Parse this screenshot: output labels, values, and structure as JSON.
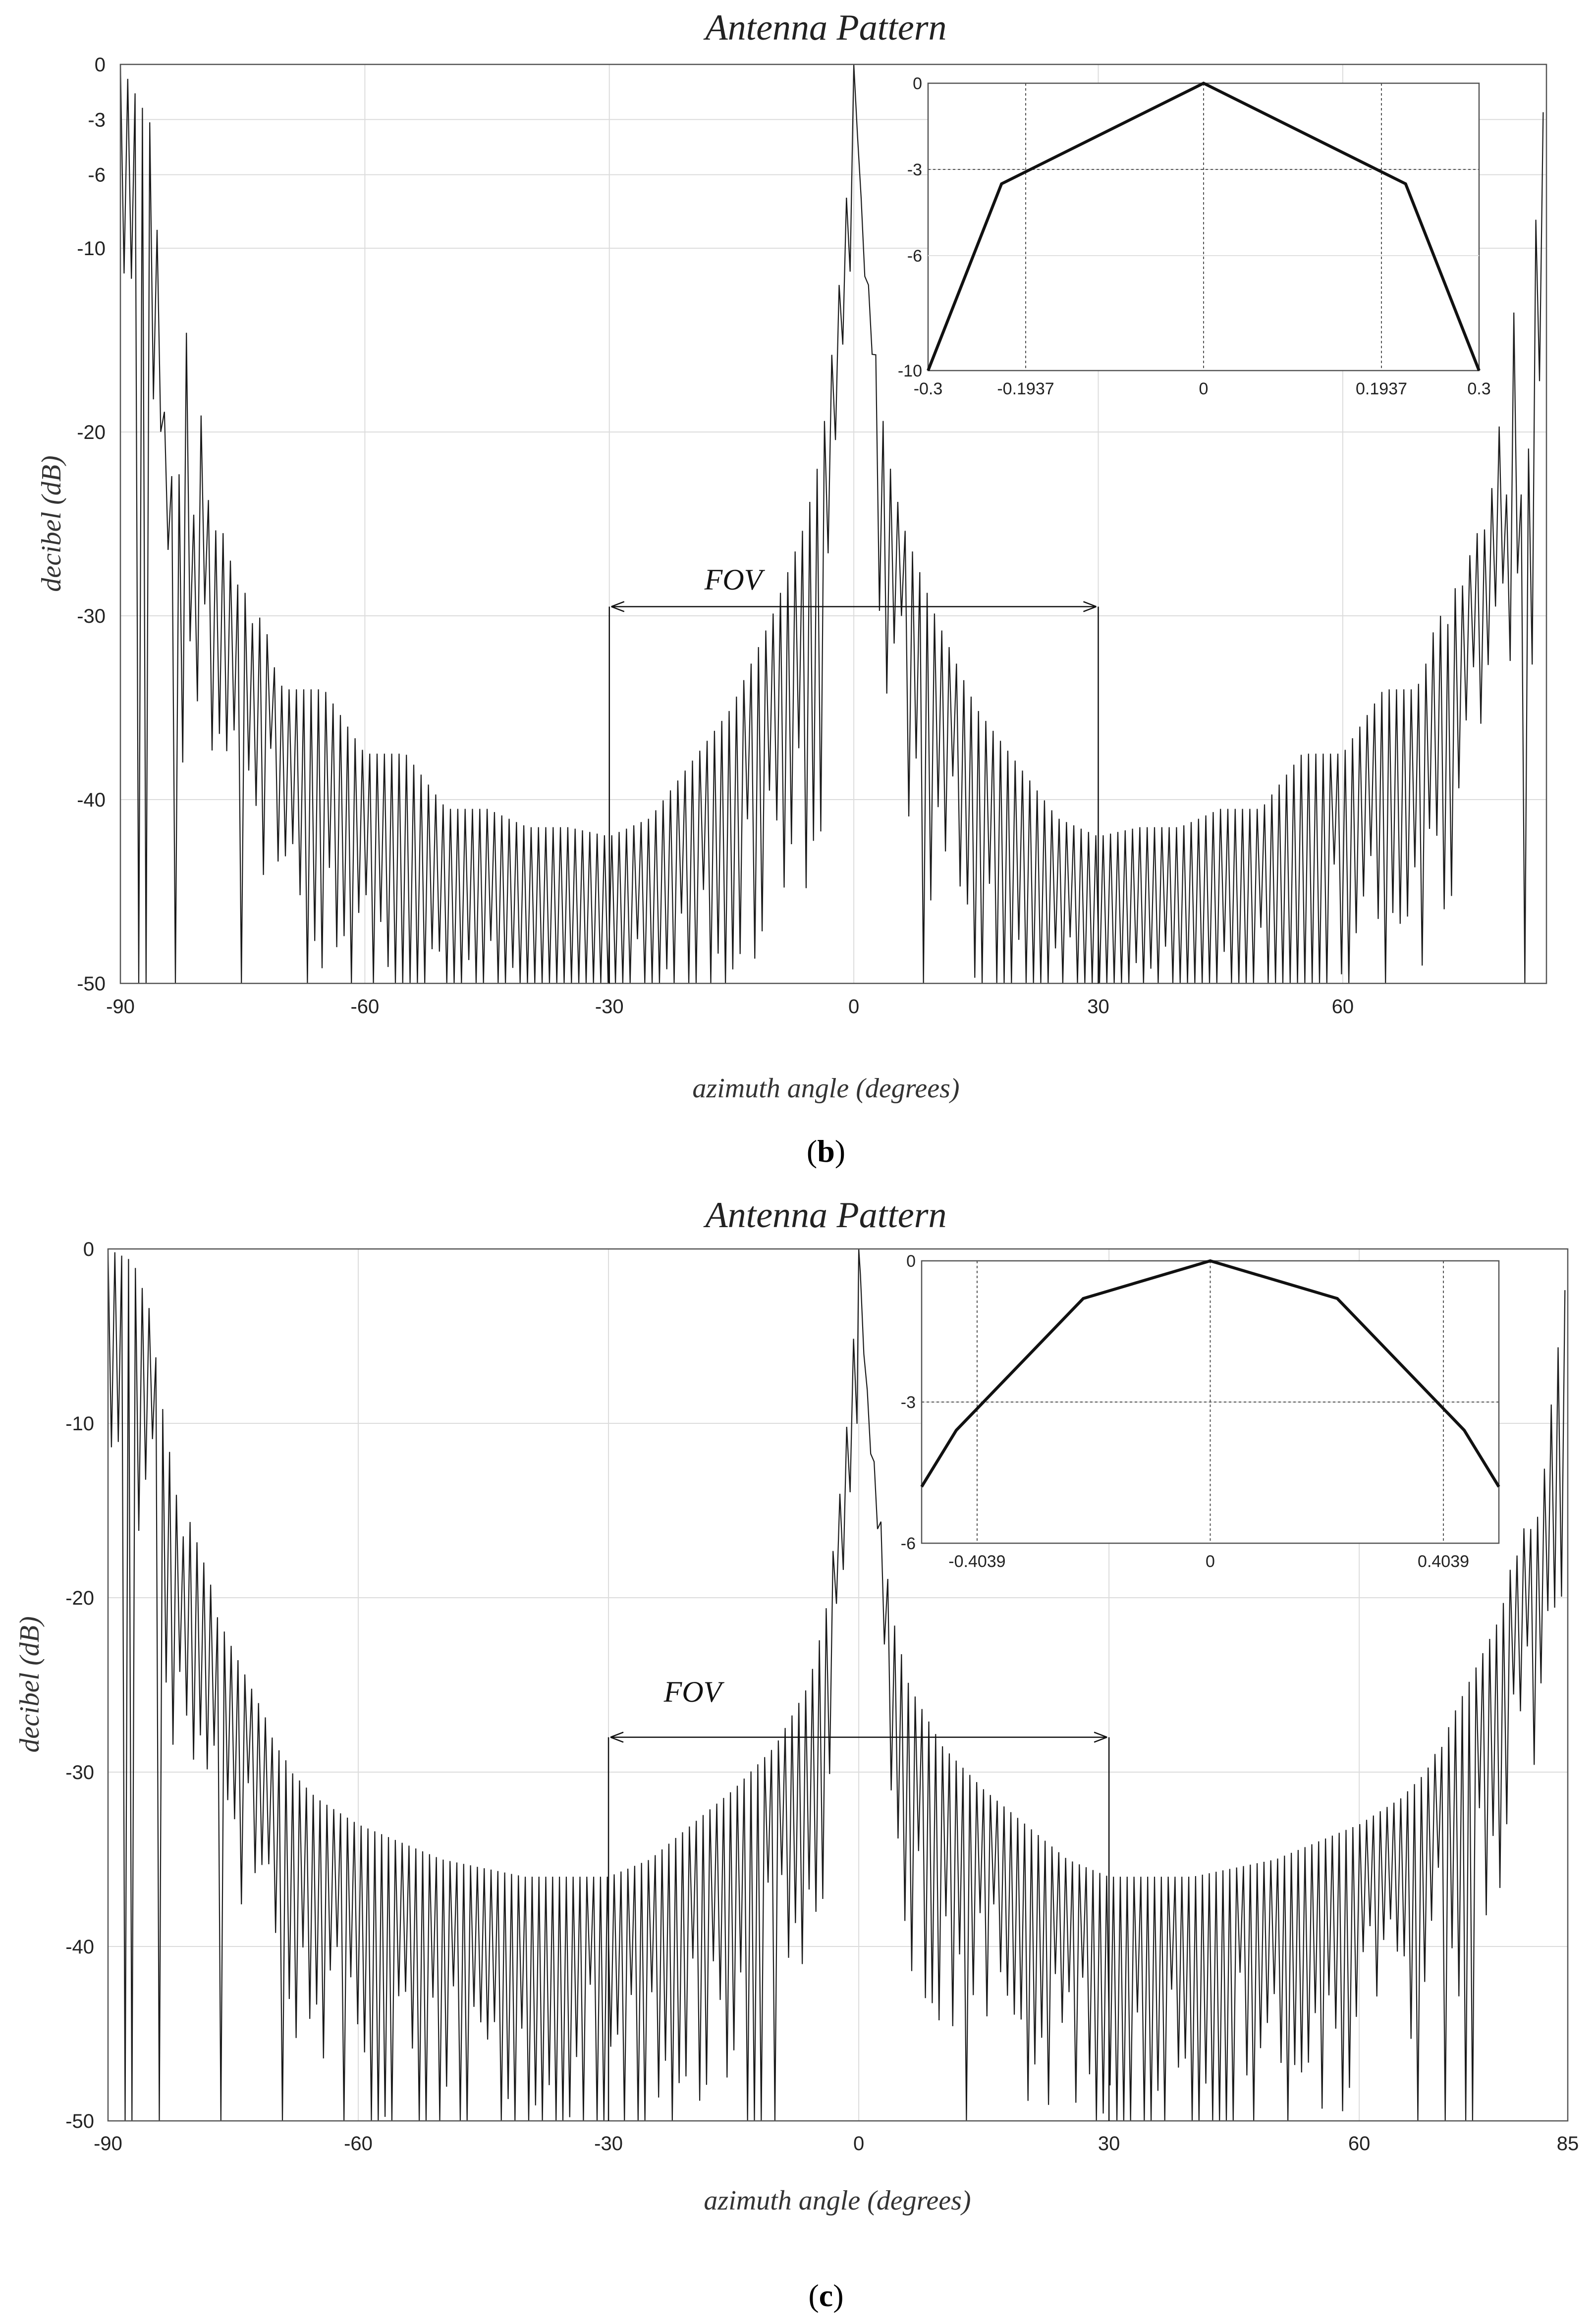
{
  "chart_data": [
    {
      "type": "line",
      "panel": "b",
      "title": "Antenna Pattern",
      "xlabel": "azimuth angle (degrees)",
      "ylabel": "decibel (dB)",
      "xlim": [
        -90,
        85
      ],
      "ylim": [
        -50,
        0
      ],
      "xticks": [
        -90,
        -60,
        -30,
        0,
        30,
        60
      ],
      "yticks": [
        0,
        -3,
        -6,
        -10,
        -20,
        -30,
        -40,
        -50
      ],
      "grid": true,
      "series": [
        {
          "name": "pattern",
          "floor": -50,
          "x": [
            -90,
            -86,
            -84.5,
            -83,
            -82,
            -81,
            -80,
            -79,
            -78,
            -77,
            -76,
            -75,
            -74,
            -73,
            -72,
            -71,
            -70,
            -69,
            -68,
            -65,
            -60,
            -55,
            -50,
            -45,
            -40,
            -35,
            -30,
            -25,
            -20,
            -15,
            -10,
            -6,
            -4,
            -3,
            -2,
            -1,
            -0.4,
            -0.2,
            0,
            0.2,
            0.4,
            1,
            2,
            3,
            4,
            6,
            10,
            15,
            20,
            25,
            30,
            35,
            40,
            45,
            50,
            55,
            60,
            65,
            68,
            69,
            70,
            71,
            72,
            73,
            74,
            75,
            76,
            77,
            78,
            79,
            80,
            81,
            82,
            83,
            84,
            85
          ],
          "y": [
            0,
            -3.5,
            -20,
            -24.5,
            -13.5,
            -24.5,
            -18.5,
            -25,
            -25.5,
            -25.5,
            -28.5,
            -28,
            -30.5,
            -30,
            -31,
            -33,
            -34,
            -34,
            -34,
            -34,
            -37.5,
            -37.5,
            -40.5,
            -40.5,
            -41.5,
            -41.5,
            -42,
            -41,
            -38,
            -35,
            -30,
            -25,
            -21,
            -17,
            -13,
            -8,
            -3.5,
            -2,
            0,
            -2,
            -3.5,
            -8,
            -13,
            -17,
            -21,
            -25,
            -30,
            -35,
            -38,
            -41,
            -42,
            -41.5,
            -41.5,
            -40.5,
            -40.5,
            -37.5,
            -37.5,
            -34,
            -34,
            -34,
            -33,
            -31,
            -30,
            -30.5,
            -28,
            -28.5,
            -25.5,
            -25.5,
            -25,
            -18.5,
            -24.5,
            -13.5,
            -24.5,
            -20,
            -3.5,
            -2
          ]
        }
      ],
      "fov": {
        "label": "FOV",
        "range": [
          -30,
          30
        ],
        "level": -29.5
      },
      "inset": {
        "xlim": [
          -0.3,
          0.3
        ],
        "ylim": [
          -10,
          0
        ],
        "xticks": [
          -0.3,
          -0.1937,
          0,
          0.1937,
          0.3
        ],
        "yticks": [
          0,
          -3,
          -6,
          -10
        ],
        "x": [
          -0.3,
          -0.22,
          0,
          0.22,
          0.3
        ],
        "y": [
          -10,
          -3.5,
          0,
          -3.5,
          -10
        ],
        "ref_x": [
          -0.1937,
          0,
          0.1937
        ],
        "ref_y": -3
      }
    },
    {
      "type": "line",
      "panel": "c",
      "title": "Antenna Pattern",
      "xlabel": "azimuth angle (degrees)",
      "ylabel": "decibel (dB)",
      "xlim": [
        -90,
        85
      ],
      "ylim": [
        -50,
        0
      ],
      "xticks": [
        -90,
        -60,
        -30,
        0,
        30,
        60,
        85
      ],
      "yticks": [
        0,
        -10,
        -20,
        -30,
        -40,
        -50
      ],
      "grid": true,
      "series": [
        {
          "name": "pattern",
          "floor": -50,
          "x": [
            -90,
            -87,
            -85,
            -83.5,
            -82,
            -81,
            -80,
            -79,
            -78,
            -77,
            -76,
            -75,
            -74,
            -73,
            -72,
            -71,
            -70,
            -69,
            -68,
            -65,
            -60,
            -55,
            -50,
            -45,
            -40,
            -35,
            -30,
            -25,
            -20,
            -15,
            -10,
            -6,
            -4,
            -3,
            -2,
            -1,
            -0.4,
            -0.2,
            0,
            0.2,
            0.4,
            1,
            2,
            3,
            4,
            6,
            10,
            15,
            20,
            25,
            30,
            35,
            40,
            45,
            50,
            55,
            60,
            65,
            68,
            69,
            70,
            71,
            72,
            73,
            74,
            75,
            76,
            77,
            78,
            79,
            80,
            81,
            82,
            83,
            85
          ],
          "y": [
            0,
            -0.7,
            -3.5,
            -9,
            -13.5,
            -16.5,
            -15.5,
            -17.5,
            -18.5,
            -21,
            -22,
            -23,
            -24,
            -25,
            -26,
            -27,
            -28.5,
            -29,
            -30,
            -31.5,
            -33,
            -34,
            -35,
            -35.5,
            -36,
            -36,
            -36,
            -35,
            -33,
            -31,
            -28.5,
            -25,
            -21,
            -17,
            -13,
            -8,
            -3.5,
            -1.5,
            0,
            -1.5,
            -3.5,
            -8,
            -13,
            -17,
            -21,
            -25,
            -28.5,
            -31,
            -33,
            -35,
            -36,
            -36,
            -36,
            -35.5,
            -35,
            -34,
            -33,
            -31.5,
            -30,
            -29,
            -28.5,
            -27,
            -26,
            -25,
            -24,
            -23,
            -22,
            -21,
            -18.5,
            -17.5,
            -15.5,
            -16.5,
            -13.5,
            -9,
            -1
          ]
        }
      ],
      "fov": {
        "label": "FOV",
        "range": [
          -30,
          30
        ],
        "level": -28
      },
      "inset": {
        "xlim": [
          -0.5,
          0.5
        ],
        "ylim": [
          -6,
          0
        ],
        "xticks": [
          -0.4039,
          0,
          0.4039
        ],
        "yticks": [
          0,
          -3,
          -6
        ],
        "x": [
          -0.5,
          -0.44,
          -0.22,
          0,
          0.22,
          0.44,
          0.5
        ],
        "y": [
          -4.8,
          -3.6,
          -0.8,
          0,
          -0.8,
          -3.6,
          -4.8
        ],
        "ref_x": [
          -0.4039,
          0,
          0.4039
        ],
        "ref_y": -3
      }
    }
  ],
  "panel_labels": [
    "b",
    "c"
  ]
}
